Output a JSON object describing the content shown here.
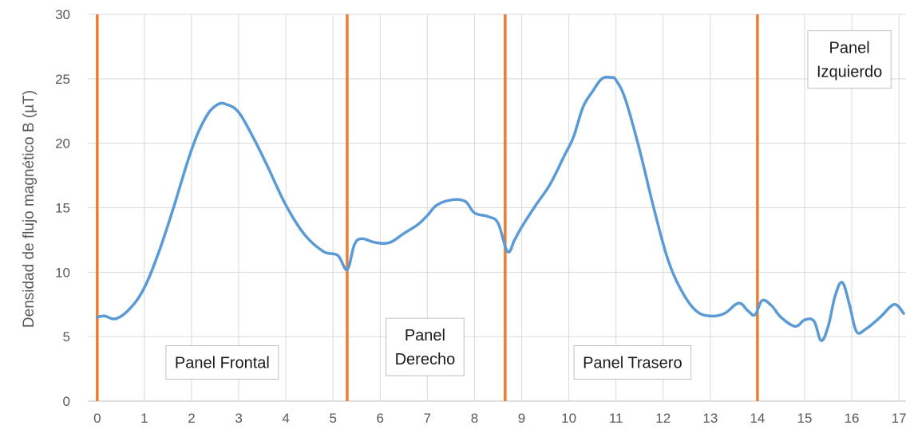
{
  "chart_data": {
    "type": "line",
    "title": "",
    "xlabel": "",
    "ylabel": "Densidad de flujo magnético B (µT)",
    "xlim": [
      -0.2,
      17.15
    ],
    "ylim": [
      0,
      30
    ],
    "xticks": [
      0,
      1,
      2,
      3,
      4,
      5,
      6,
      7,
      8,
      9,
      10,
      11,
      12,
      13,
      14,
      15,
      16,
      17
    ],
    "yticks": [
      0,
      5,
      10,
      15,
      20,
      25,
      30
    ],
    "grid": true,
    "series": [
      {
        "color": "#5b9bd5",
        "x": [
          0,
          0.15,
          0.4,
          0.7,
          1.0,
          1.3,
          1.6,
          2.0,
          2.3,
          2.55,
          2.75,
          3.0,
          3.3,
          3.6,
          4.0,
          4.4,
          4.8,
          5.1,
          5.3,
          5.45,
          5.6,
          5.9,
          6.2,
          6.5,
          6.8,
          7.0,
          7.2,
          7.5,
          7.8,
          8.0,
          8.3,
          8.5,
          8.7,
          8.85,
          9.0,
          9.3,
          9.6,
          9.9,
          10.1,
          10.3,
          10.5,
          10.7,
          10.9,
          11.0,
          11.2,
          11.5,
          11.8,
          12.1,
          12.4,
          12.7,
          13.0,
          13.3,
          13.6,
          13.8,
          13.95,
          14.1,
          14.3,
          14.5,
          14.8,
          15.0,
          15.2,
          15.35,
          15.5,
          15.65,
          15.8,
          15.95,
          16.1,
          16.3,
          16.6,
          16.9,
          17.1
        ],
        "y": [
          6.5,
          6.6,
          6.4,
          7.2,
          8.8,
          11.5,
          14.8,
          19.5,
          22.0,
          23.0,
          23.0,
          22.4,
          20.5,
          18.3,
          15.2,
          12.9,
          11.6,
          11.3,
          10.2,
          12.1,
          12.6,
          12.3,
          12.3,
          13.0,
          13.7,
          14.4,
          15.2,
          15.6,
          15.5,
          14.6,
          14.3,
          13.8,
          11.6,
          12.5,
          13.5,
          15.2,
          16.8,
          19.0,
          20.5,
          22.8,
          24.0,
          25.0,
          25.1,
          24.9,
          23.4,
          19.5,
          15.0,
          11.0,
          8.5,
          7.0,
          6.6,
          6.8,
          7.6,
          7.0,
          6.7,
          7.8,
          7.4,
          6.5,
          5.8,
          6.3,
          6.2,
          4.7,
          5.8,
          8.2,
          9.2,
          7.5,
          5.4,
          5.6,
          6.5,
          7.5,
          6.8
        ]
      }
    ],
    "dividers": [
      0,
      5.3,
      8.65,
      14.0
    ],
    "divider_color": "#ed7d31",
    "annotations": [
      {
        "lines": [
          "Panel Frontal"
        ],
        "x": 2.65,
        "y": 3.0
      },
      {
        "lines": [
          "Panel",
          "Derecho"
        ],
        "x": 6.95,
        "y": 4.2
      },
      {
        "lines": [
          "Panel Trasero"
        ],
        "x": 11.35,
        "y": 3.0
      },
      {
        "lines": [
          "Panel",
          "Izquierdo"
        ],
        "x": 15.95,
        "y": 26.5
      }
    ]
  }
}
